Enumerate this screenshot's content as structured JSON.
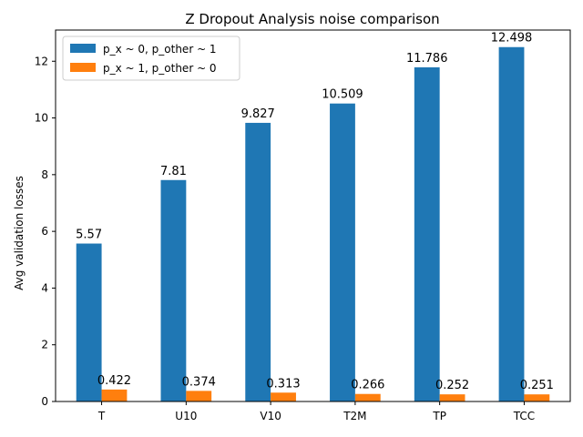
{
  "chart_data": {
    "type": "bar",
    "title": "Z Dropout Analysis noise comparison",
    "xlabel": "",
    "ylabel": "Avg validation losses",
    "categories": [
      "T",
      "U10",
      "V10",
      "T2M",
      "TP",
      "TCC"
    ],
    "series": [
      {
        "name": "p_x ~ 0, p_other ~ 1",
        "color": "#1f77b4",
        "values": [
          5.57,
          7.81,
          9.827,
          10.509,
          11.786,
          12.498
        ],
        "labels": [
          "5.57",
          "7.81",
          "9.827",
          "10.509",
          "11.786",
          "12.498"
        ]
      },
      {
        "name": "p_x ~ 1, p_other ~ 0",
        "color": "#ff7f0e",
        "values": [
          0.422,
          0.374,
          0.313,
          0.266,
          0.252,
          0.251
        ],
        "labels": [
          "0.422",
          "0.374",
          "0.313",
          "0.266",
          "0.252",
          "0.251"
        ]
      }
    ],
    "ylim": [
      0,
      13.1
    ],
    "yticks": [
      0,
      2,
      4,
      6,
      8,
      10,
      12
    ],
    "ytick_labels": [
      "0",
      "2",
      "4",
      "6",
      "8",
      "10",
      "12"
    ],
    "grid": false,
    "legend_position": "top-left"
  }
}
